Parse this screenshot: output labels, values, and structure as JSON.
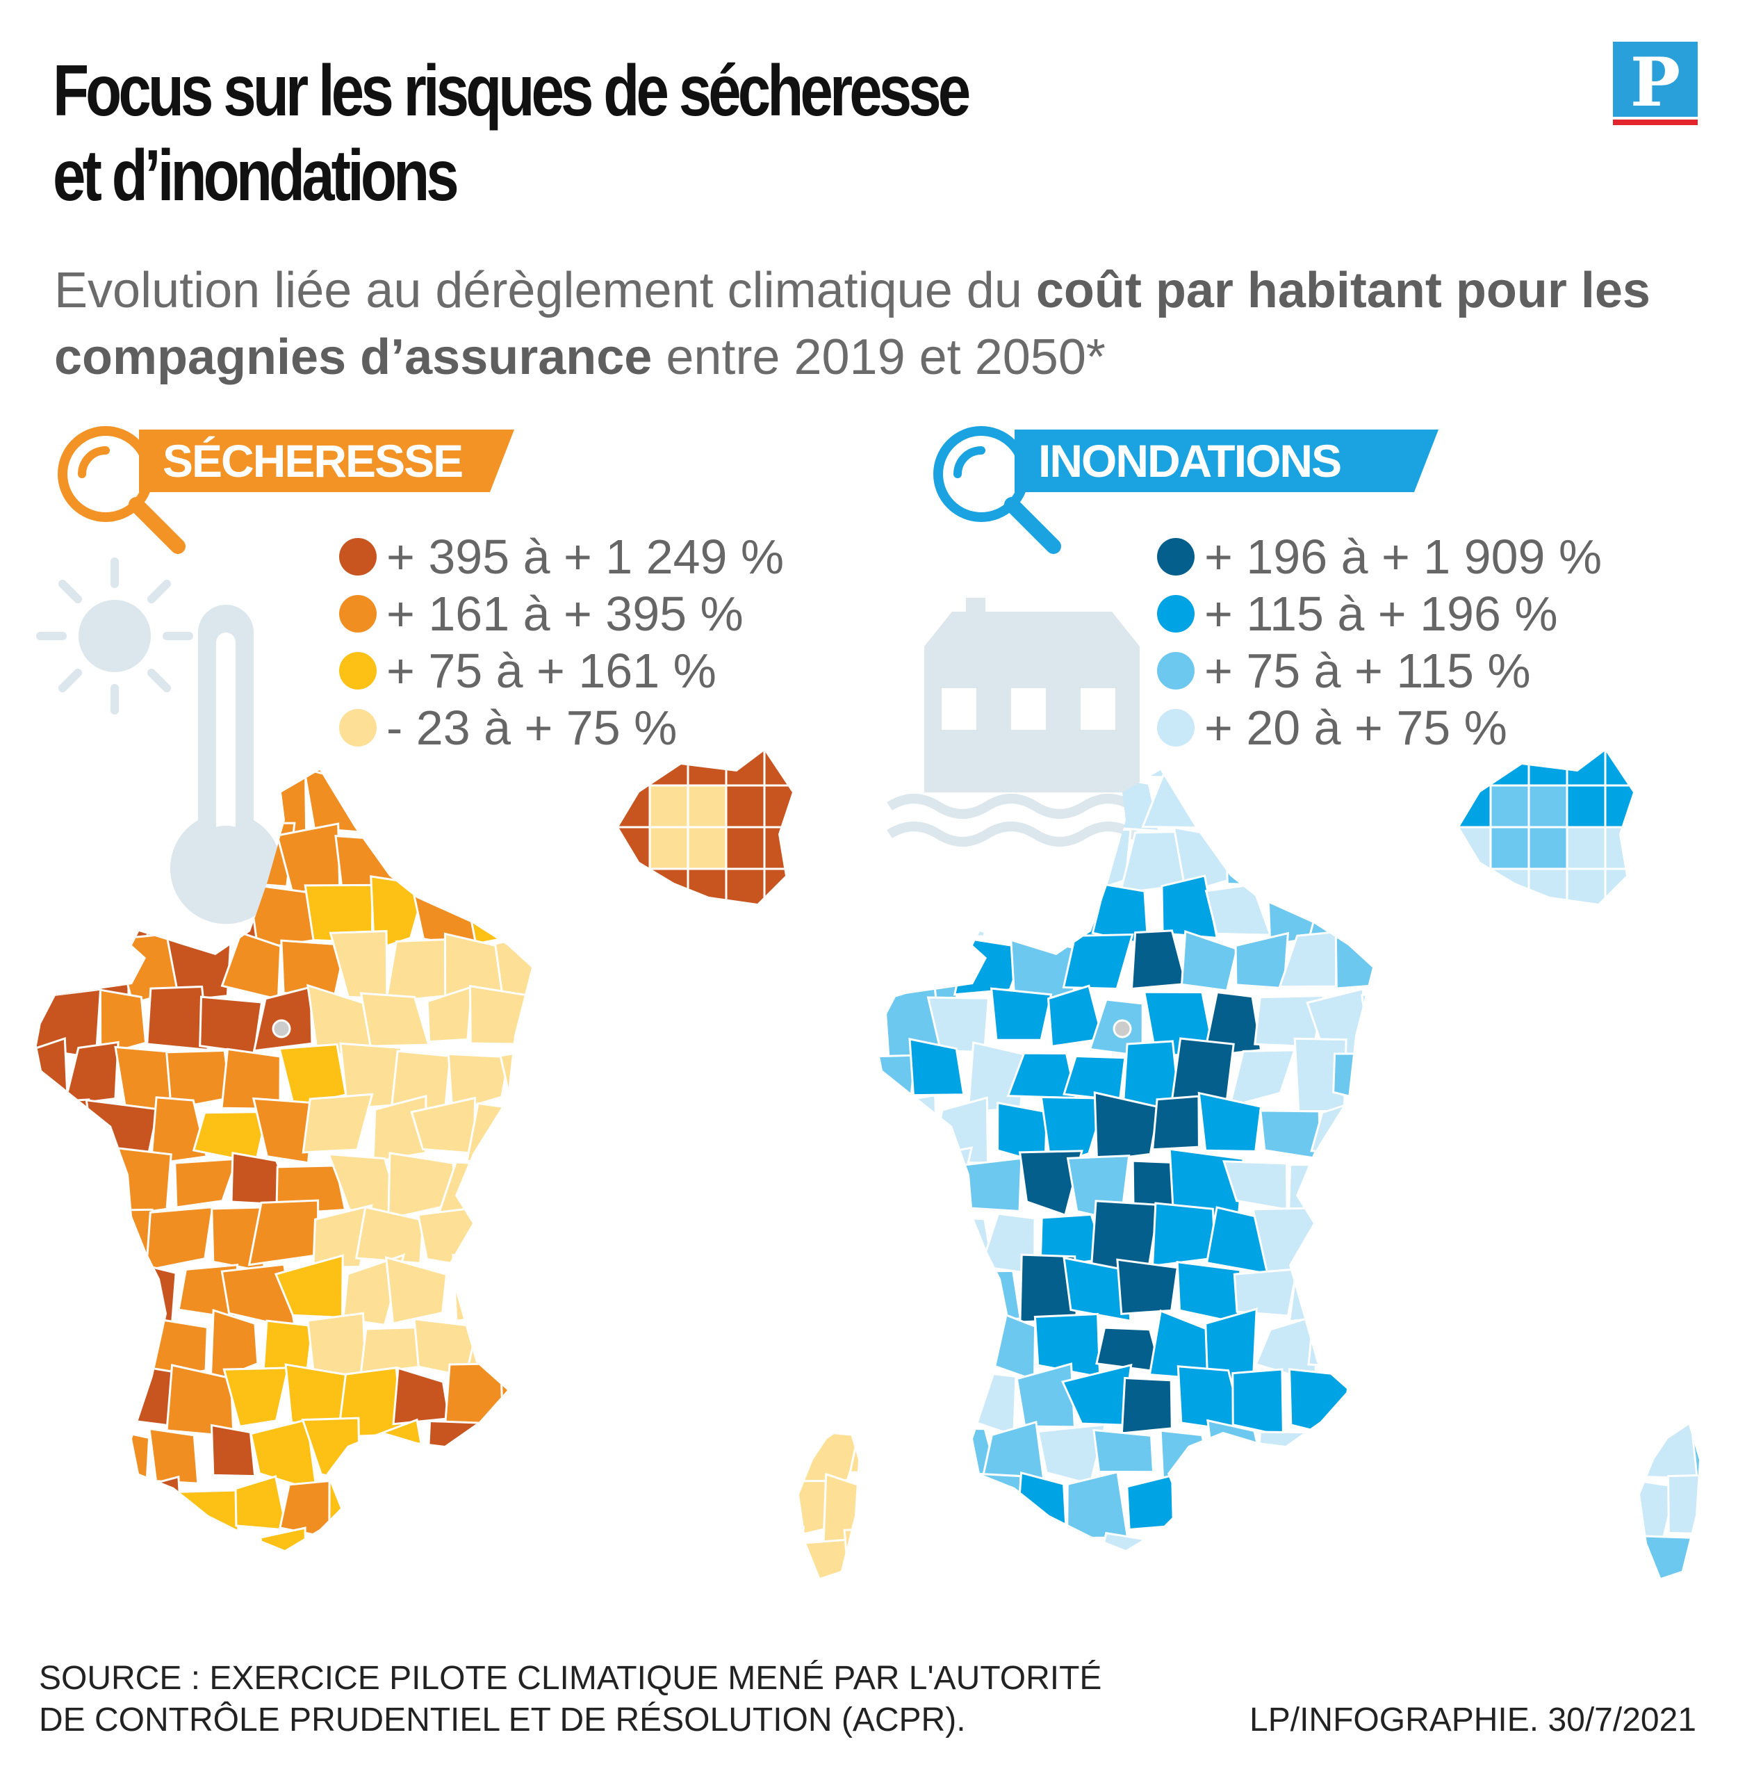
{
  "title": {
    "line1": "Focus sur les risques de sécheresse",
    "line2": "et d’inondations"
  },
  "logo": {
    "letter": "P"
  },
  "subtitle": {
    "part1": "Evolution liée au dérèglement climatique du ",
    "bold": "coût par habitant pour les compagnies d’assurance",
    "part2": " entre 2019 et 2050*"
  },
  "secheresse": {
    "label": "SÉCHERESSE",
    "accent": "#f39325",
    "legend": [
      {
        "text": "+ 395 à + 1 249 %",
        "color": "#c85520"
      },
      {
        "text": "+ 161 à + 395 %",
        "color": "#f18e22"
      },
      {
        "text": "+ 75 à + 161 %",
        "color": "#fcc114"
      },
      {
        "text": "- 23 à + 75 %",
        "color": "#fde096"
      }
    ]
  },
  "inondations": {
    "label": "INONDATIONS",
    "accent": "#1aa3e0",
    "legend": [
      {
        "text": "+ 196 à + 1 909 %",
        "color": "#045f8c"
      },
      {
        "text": "+ 115 à + 196 %",
        "color": "#00a3e3"
      },
      {
        "text": "+ 75 à + 115 %",
        "color": "#6dc8f0"
      },
      {
        "text": "+ 20 à + 75 %",
        "color": "#c9e8f8"
      }
    ]
  },
  "source": {
    "line1": "SOURCE : EXERCICE PILOTE CLIMATIQUE MENÉ PAR L'AUTORITÉ",
    "line2": "DE CONTRÔLE PRUDENTIEL ET DE RÉSOLUTION (ACPR)."
  },
  "credit": "LP/INFOGRAPHIE.  30/7/2021"
}
